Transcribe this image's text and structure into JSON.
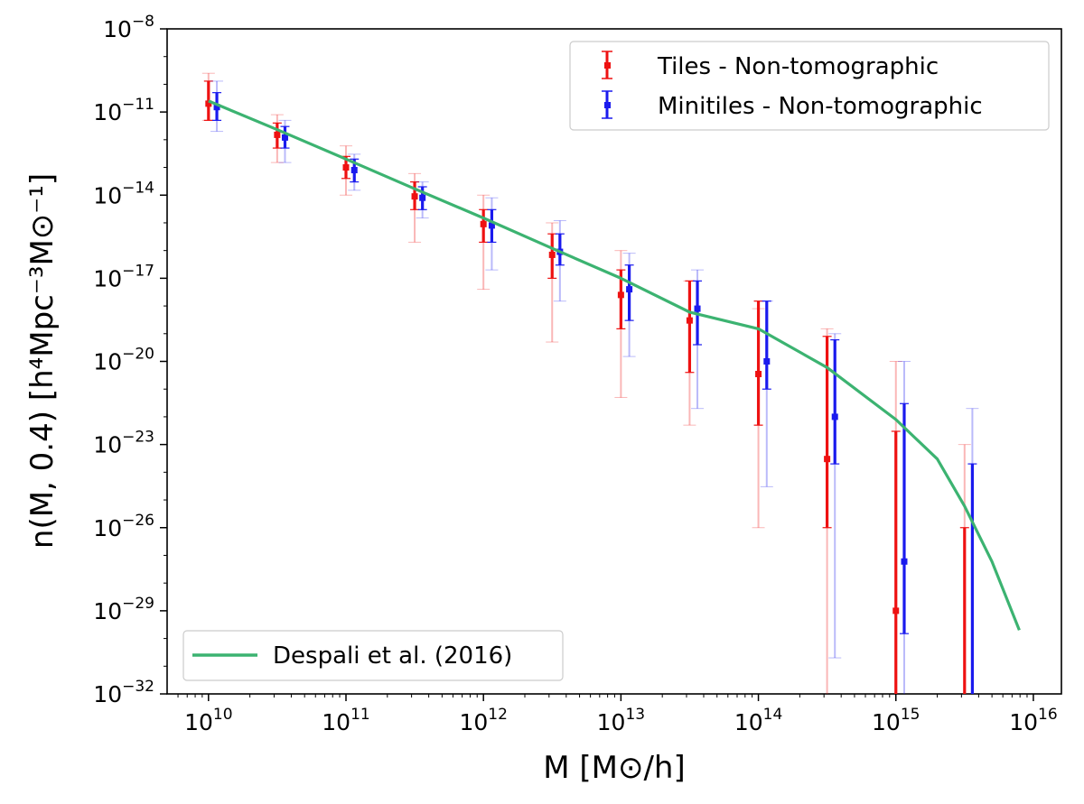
{
  "chart_data": {
    "type": "scatter",
    "xscale": "log",
    "yscale": "log",
    "xlim": [
      5000000000.0,
      1.6e+16
    ],
    "ylim": [
      1e-32,
      1e-08
    ],
    "xlabel": "M [M⊙/h]",
    "ylabel": "n(M, 0.4) [h⁴Mpc⁻³M⊙⁻¹]",
    "x_tick_labels": [
      {
        "value": 10000000000.0,
        "base": "10",
        "exp": "10"
      },
      {
        "value": 100000000000.0,
        "base": "10",
        "exp": "11"
      },
      {
        "value": 1000000000000.0,
        "base": "10",
        "exp": "12"
      },
      {
        "value": 10000000000000.0,
        "base": "10",
        "exp": "13"
      },
      {
        "value": 100000000000000.0,
        "base": "10",
        "exp": "14"
      },
      {
        "value": 1000000000000000.0,
        "base": "10",
        "exp": "15"
      },
      {
        "value": 1e+16,
        "base": "10",
        "exp": "16"
      }
    ],
    "y_tick_labels": [
      {
        "value": 1e-08,
        "base": "10",
        "exp": "−8"
      },
      {
        "value": 1e-11,
        "base": "10",
        "exp": "−11"
      },
      {
        "value": 1e-14,
        "base": "10",
        "exp": "−14"
      },
      {
        "value": 1e-17,
        "base": "10",
        "exp": "−17"
      },
      {
        "value": 1e-20,
        "base": "10",
        "exp": "−20"
      },
      {
        "value": 1e-23,
        "base": "10",
        "exp": "−23"
      },
      {
        "value": 1e-26,
        "base": "10",
        "exp": "−26"
      },
      {
        "value": 1e-29,
        "base": "10",
        "exp": "−29"
      },
      {
        "value": 1e-32,
        "base": "10",
        "exp": "−32"
      }
    ],
    "legend_top": {
      "placement": "upper right",
      "entries": [
        {
          "label": "Tiles - Non-tomographic",
          "color": "#ee1111"
        },
        {
          "label": "Minitiles - Non-tomographic",
          "color": "#1a1aee"
        }
      ]
    },
    "legend_bottom": {
      "placement": "lower left",
      "entries": [
        {
          "label": "Despali et al. (2016)",
          "color": "#3cb371"
        }
      ]
    },
    "series": [
      {
        "name": "Tiles - Non-tomographic",
        "color": "#ee1111",
        "points": [
          {
            "x": 10000000000.0,
            "y": 2e-11,
            "err_lo": 5e-12,
            "err_hi": 1.3e-10,
            "outer_lo": 5e-12,
            "outer_hi": 2.5e-10
          },
          {
            "x": 31600000000.0,
            "y": 1.5e-12,
            "err_lo": 5e-13,
            "err_hi": 4e-12,
            "outer_lo": 1.5e-13,
            "outer_hi": 8e-12
          },
          {
            "x": 100000000000.0,
            "y": 1e-13,
            "err_lo": 4e-14,
            "err_hi": 2.5e-13,
            "outer_lo": 1e-14,
            "outer_hi": 6e-13
          },
          {
            "x": 316000000000.0,
            "y": 9e-15,
            "err_lo": 3e-15,
            "err_hi": 3e-14,
            "outer_lo": 2e-16,
            "outer_hi": 6e-14
          },
          {
            "x": 1000000000000.0,
            "y": 9e-16,
            "err_lo": 2e-16,
            "err_hi": 3e-15,
            "outer_lo": 4e-18,
            "outer_hi": 1e-14
          },
          {
            "x": 3160000000000.0,
            "y": 7e-17,
            "err_lo": 1e-17,
            "err_hi": 4e-16,
            "outer_lo": 5e-20,
            "outer_hi": 1e-15
          },
          {
            "x": 10000000000000.0,
            "y": 2.5e-18,
            "err_lo": 1.5e-19,
            "err_hi": 2e-17,
            "outer_lo": 5e-22,
            "outer_hi": 1e-16
          },
          {
            "x": 31600000000000.0,
            "y": 3e-19,
            "err_lo": 4e-21,
            "err_hi": 8e-18,
            "outer_lo": 5e-23,
            "outer_hi": 8e-18
          },
          {
            "x": 100000000000000.0,
            "y": 3.5e-21,
            "err_lo": 5e-23,
            "err_hi": 1.5e-18,
            "outer_lo": 1e-26,
            "outer_hi": 8e-19
          },
          {
            "x": 316000000000000.0,
            "y": 3e-24,
            "err_lo": 1e-26,
            "err_hi": 8e-20,
            "outer_lo": 1e-32,
            "outer_hi": 1.5e-19
          },
          {
            "x": 1000000000000000.0,
            "y": 1e-29,
            "err_lo": 1e-32,
            "err_hi": 3e-23,
            "outer_lo": 1e-32,
            "outer_hi": 1e-20
          },
          {
            "x": 3160000000000000.0,
            "y": null,
            "err_lo": 1e-32,
            "err_hi": 1e-26,
            "outer_lo": 1e-32,
            "outer_hi": 1e-23
          }
        ]
      },
      {
        "name": "Minitiles - Non-tomographic",
        "color": "#1a1aee",
        "points": [
          {
            "x": 11500000000.0,
            "y": 1.5e-11,
            "err_lo": 5e-12,
            "err_hi": 5e-11,
            "outer_lo": 2e-12,
            "outer_hi": 1.3e-10
          },
          {
            "x": 36000000000.0,
            "y": 1.2e-12,
            "err_lo": 5e-13,
            "err_hi": 3e-12,
            "outer_lo": 1.5e-13,
            "outer_hi": 5e-12
          },
          {
            "x": 115000000000.0,
            "y": 8e-14,
            "err_lo": 3e-14,
            "err_hi": 2e-13,
            "outer_lo": 1.5e-14,
            "outer_hi": 3e-13
          },
          {
            "x": 360000000000.0,
            "y": 8e-15,
            "err_lo": 3e-15,
            "err_hi": 2e-14,
            "outer_lo": 1.5e-15,
            "outer_hi": 3e-14
          },
          {
            "x": 1150000000000.0,
            "y": 8e-16,
            "err_lo": 2e-16,
            "err_hi": 3e-15,
            "outer_lo": 2e-17,
            "outer_hi": 8e-15
          },
          {
            "x": 3600000000000.0,
            "y": 9e-17,
            "err_lo": 3e-17,
            "err_hi": 4e-16,
            "outer_lo": 1.5e-18,
            "outer_hi": 1.2e-15
          },
          {
            "x": 11500000000000.0,
            "y": 4e-18,
            "err_lo": 3e-19,
            "err_hi": 3e-17,
            "outer_lo": 1.5e-20,
            "outer_hi": 8e-17
          },
          {
            "x": 36000000000000.0,
            "y": 8e-19,
            "err_lo": 4e-20,
            "err_hi": 8e-18,
            "outer_lo": 2e-22,
            "outer_hi": 2e-17
          },
          {
            "x": 115000000000000.0,
            "y": 1e-20,
            "err_lo": 1e-21,
            "err_hi": 1.5e-18,
            "outer_lo": 3e-25,
            "outer_hi": 1.5e-18
          },
          {
            "x": 360000000000000.0,
            "y": 1e-22,
            "err_lo": 2e-24,
            "err_hi": 6e-20,
            "outer_lo": 2e-31,
            "outer_hi": 1e-19
          },
          {
            "x": 1150000000000000.0,
            "y": 6e-28,
            "err_lo": 1.5e-30,
            "err_hi": 3e-22,
            "outer_lo": 1e-32,
            "outer_hi": 1e-20
          },
          {
            "x": 3600000000000000.0,
            "y": null,
            "err_lo": 1e-32,
            "err_hi": 2e-24,
            "outer_lo": 1e-32,
            "outer_hi": 2e-22
          }
        ]
      },
      {
        "name": "Despali et al. (2016)",
        "color": "#3cb371",
        "line": true,
        "x": [
          10000000000.0,
          31600000000.0,
          100000000000.0,
          316000000000.0,
          1000000000000.0,
          3160000000000.0,
          10000000000000.0,
          31600000000000.0,
          100000000000000.0,
          316000000000000.0,
          1000000000000000.0,
          2000000000000000.0,
          3160000000000000.0,
          5000000000000000.0,
          7900000000000000.0
        ],
        "y": [
          2.5e-11,
          2.3e-12,
          2e-13,
          1.7e-14,
          1.5e-15,
          1.2e-16,
          1e-17,
          6e-19,
          1.5e-19,
          6e-21,
          8e-23,
          3e-24,
          6e-26,
          6e-28,
          2e-30
        ]
      }
    ]
  }
}
